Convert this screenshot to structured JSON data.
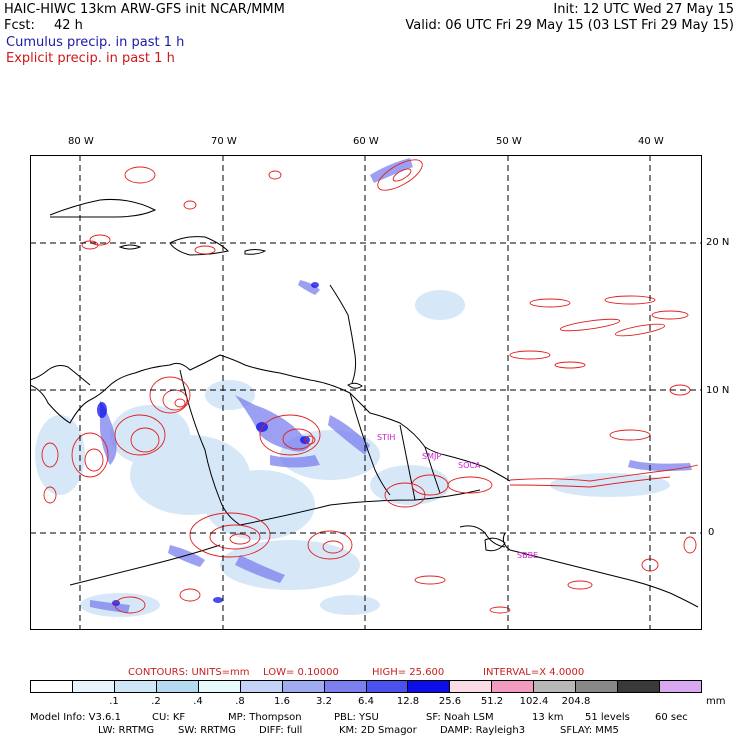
{
  "header": {
    "line1_left": "HAIC-HIWC 13km ARW-GFS init    NCAR/MMM",
    "line1_right": "Init: 12 UTC Wed 27 May 15",
    "fcst_label": "Fcst:",
    "fcst_value": "42 h",
    "valid": "Valid: 06 UTC Fri 29 May 15 (03 LST Fri 29 May 15)",
    "cumulus": "Cumulus precip. in past 1 h",
    "explicit": "Explicit precip. in past 1 h"
  },
  "axes": {
    "lon_labels": [
      "80 W",
      "70 W",
      "60 W",
      "50 W",
      "40 W"
    ],
    "lat_labels": [
      "20 N",
      "10 N",
      "0"
    ]
  },
  "stations": [
    "STIH",
    "SMJP",
    "SOCA",
    "SBBE"
  ],
  "contours": {
    "units": "CONTOURS:  UNITS=mm",
    "low": "LOW=  0.10000",
    "high": "HIGH=  25.600",
    "interval": "INTERVAL=X  4.0000"
  },
  "colorbar": {
    "colors": [
      "#ffffff",
      "#e8f4fb",
      "#cfe6f6",
      "#b4daf1",
      "#e6f9fb",
      "#c4d2f7",
      "#a0acf2",
      "#7b80ee",
      "#4c50ec",
      "#0d0de8",
      "#fbdce4",
      "#f29ac0",
      "#b8b8b8",
      "#888888",
      "#3a3a3a",
      "#d8a8f0"
    ],
    "labels": [
      ".1",
      ".2",
      ".4",
      ".8",
      "1.6",
      "3.2",
      "6.4",
      "12.8",
      "25.6",
      "51.2",
      "102.4",
      "204.8"
    ],
    "unit": "mm"
  },
  "model_info": {
    "line1": [
      "Model Info: V3.6.1",
      "CU: KF",
      "MP: Thompson",
      "PBL: YSU",
      "SF: Noah LSM",
      "13 km",
      "51 levels",
      "60 sec"
    ],
    "line2": [
      "LW: RRTMG",
      "SW: RRTMG",
      "DIFF: full",
      "KM: 2D Smagor",
      "DAMP: Rayleigh3",
      "SFLAY: MM5"
    ]
  }
}
